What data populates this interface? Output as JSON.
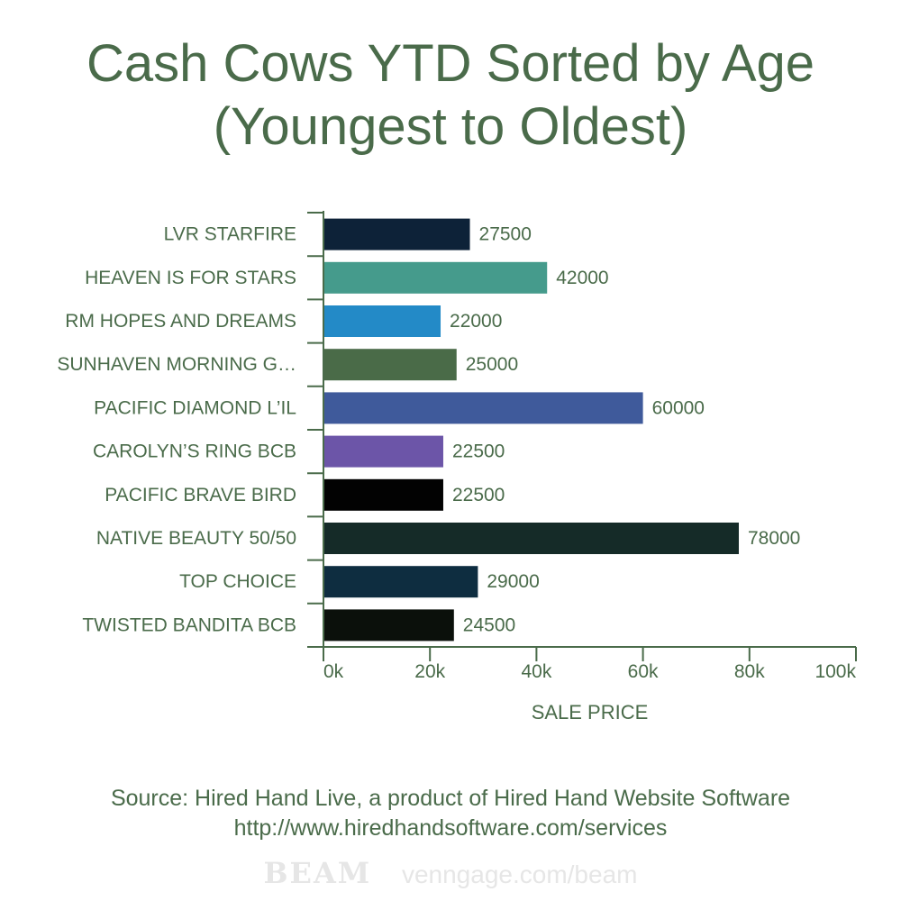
{
  "title_lines": [
    "Cash Cows YTD Sorted by Age",
    "(Youngest to Oldest)"
  ],
  "chart_data": {
    "type": "bar",
    "orientation": "horizontal",
    "categories": [
      "LVR STARFIRE",
      "HEAVEN IS FOR STARS",
      "RM HOPES AND DREAMS",
      "SUNHAVEN MORNING G…",
      "PACIFIC DIAMOND L’IL",
      "CAROLYN’S RING BCB",
      "PACIFIC BRAVE BIRD",
      "NATIVE BEAUTY 50/50",
      "TOP CHOICE",
      "TWISTED BANDITA BCB"
    ],
    "values": [
      27500,
      42000,
      22000,
      25000,
      60000,
      22500,
      22500,
      78000,
      29000,
      24500
    ],
    "data_labels": [
      "27500",
      "42000",
      "22000",
      "25000",
      "60000",
      "22500",
      "22500",
      "78000",
      "29000",
      "24500"
    ],
    "colors": [
      "#0d2238",
      "#459b8c",
      "#238ac7",
      "#4a6b48",
      "#3f5a9b",
      "#6c55a8",
      "#020202",
      "#152b28",
      "#0e2d40",
      "#0b100b"
    ],
    "title": "Cash Cows YTD Sorted by Age (Youngest to Oldest)",
    "xlabel": "SALE PRICE",
    "ylabel": "",
    "xlim": [
      0,
      100000
    ],
    "x_ticks": [
      0,
      20000,
      40000,
      60000,
      80000,
      100000
    ],
    "x_tick_labels": [
      "0k",
      "20k",
      "40k",
      "60k",
      "80k",
      "100k"
    ],
    "grid": false,
    "legend": "none"
  },
  "source_lines": [
    "Source: Hired Hand Live, a product of Hired Hand Website Software",
    "http://www.hiredhandsoftware.com/services"
  ],
  "watermark": {
    "logo": "BEAM",
    "url": "venngage.com/beam"
  },
  "colors": {
    "text": "#4a6b4a",
    "axis": "#4a6b4a",
    "watermark": "#e6e6e6"
  }
}
